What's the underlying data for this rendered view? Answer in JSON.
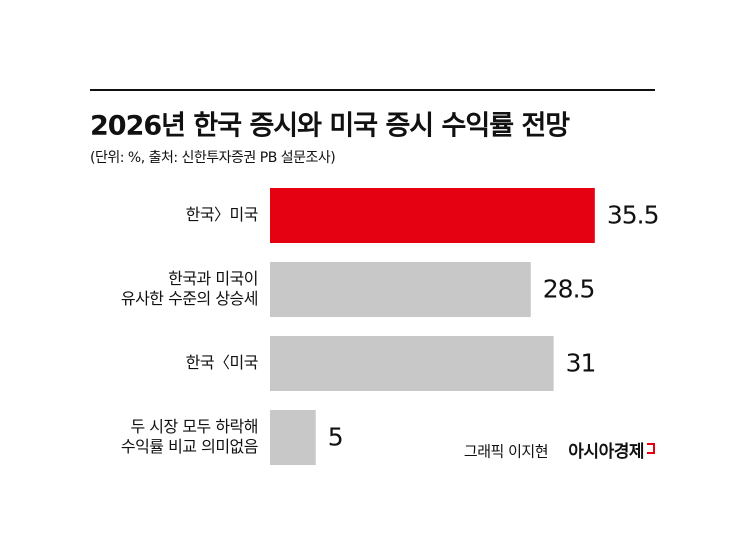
{
  "chart_data": {
    "type": "bar",
    "orientation": "horizontal",
    "title": "2026년 한국 증시와 미국 증시 수익률 전망",
    "subtitle": "(단위: %, 출처: 신한투자증권 PB 설문조사)",
    "categories": [
      [
        "한국〉미국"
      ],
      [
        "한국과 미국이",
        "유사한 수준의 상승세"
      ],
      [
        "한국〈미국"
      ],
      [
        "두 시장 모두 하락해",
        "수익률 비교 의미없음"
      ]
    ],
    "values": [
      35.5,
      28.5,
      31,
      5
    ],
    "colors": [
      "#e50012",
      "#c8c8c8",
      "#c8c8c8",
      "#c8c8c8"
    ],
    "credit": "그래픽 이지현",
    "source_logo": "아시아경제"
  }
}
